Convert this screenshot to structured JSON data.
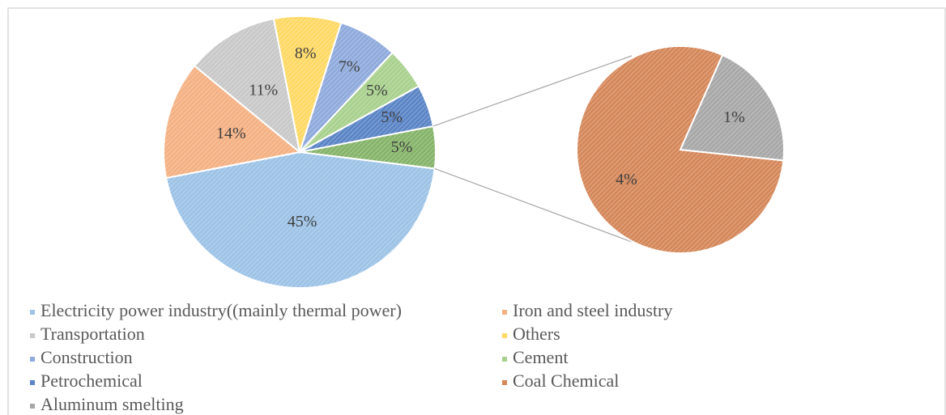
{
  "chart_data": {
    "type": "pie-of-pie",
    "categories": [
      "Electricity power industry((mainly thermal power)",
      "Iron and steel industry",
      "Transportation",
      "Others",
      "Construction",
      "Cement",
      "Petrochemical",
      "Coal Chemical",
      "Aluminum smelting"
    ],
    "values": [
      45,
      14,
      11,
      8,
      7,
      5,
      5,
      4,
      1
    ],
    "value_labels": [
      "45%",
      "14%",
      "11%",
      "8%",
      "7%",
      "5%",
      "5%",
      "4%",
      "1%"
    ],
    "colors": [
      "#9dc3e6",
      "#f4b183",
      "#c9c9c9",
      "#ffd966",
      "#8faadc",
      "#a9d18e",
      "#5b85c6",
      "#d5885a",
      "#a8a8a8"
    ],
    "secondary_count": 2,
    "secondary_total": 5,
    "secondary_total_label": "5%",
    "secondary_color": "#86b46a",
    "legend": "bottom"
  }
}
